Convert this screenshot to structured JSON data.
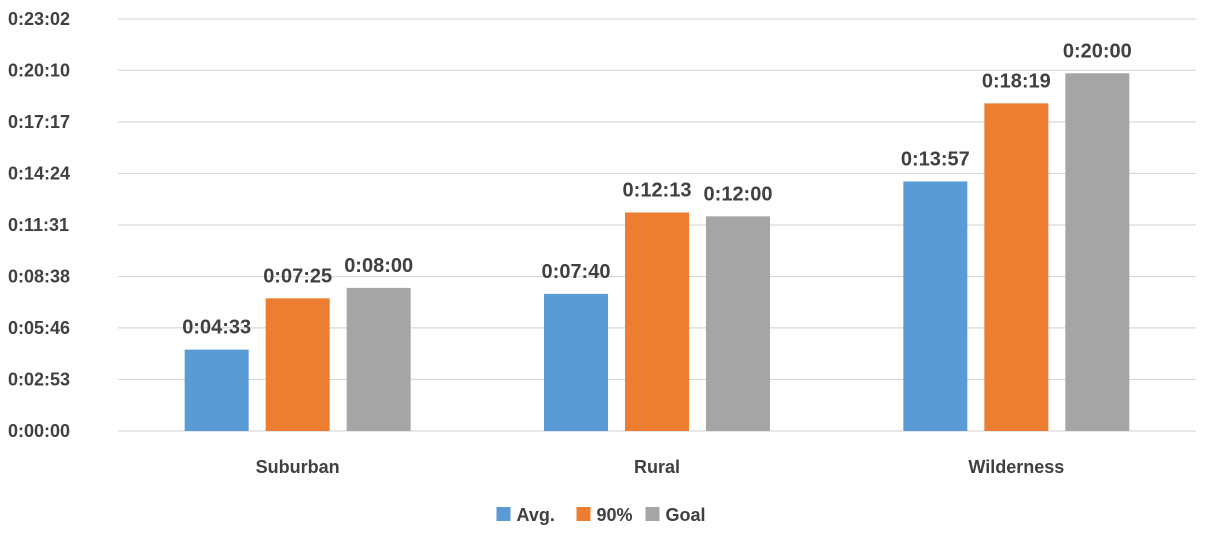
{
  "chart_data": {
    "type": "bar",
    "categories": [
      "Suburban",
      "Rural",
      "Wilderness"
    ],
    "series": [
      {
        "name": "Avg.",
        "color": "#5B9BD5",
        "values": [
          "0:04:33",
          "0:07:40",
          "0:13:57"
        ],
        "labels": [
          "0:04:33",
          "0:07:40",
          "0:13:57"
        ]
      },
      {
        "name": "90%",
        "color": "#ED7D31",
        "values": [
          "0:07:25",
          "0:12:13",
          "0:18:19"
        ],
        "labels": [
          "0:07:25",
          "0:12:13",
          "0:18:19"
        ]
      },
      {
        "name": "Goal",
        "color": "#A5A5A5",
        "values": [
          "0:08:00",
          "0:12:00",
          "0:20:00"
        ],
        "labels": [
          "0:08:00",
          "0:12:00",
          "0:20:00"
        ]
      }
    ],
    "y_ticks": [
      "0:00:00",
      "0:02:53",
      "0:05:46",
      "0:08:38",
      "0:11:31",
      "0:14:24",
      "0:17:17",
      "0:20:10",
      "0:23:02"
    ],
    "ylim": [
      "0:00:00",
      "0:23:02"
    ],
    "grid": true,
    "legend_position": "bottom",
    "title": "",
    "xlabel": "",
    "ylabel": ""
  }
}
